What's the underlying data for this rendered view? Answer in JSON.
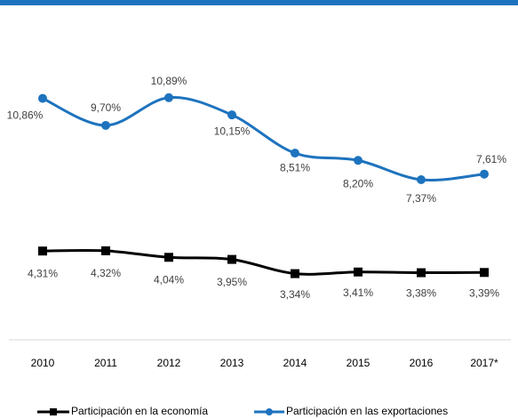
{
  "chart_data": {
    "type": "line",
    "categories": [
      "2010",
      "2011",
      "2012",
      "2013",
      "2014",
      "2015",
      "2016",
      "2017*"
    ],
    "series": [
      {
        "name": "Participación en la economía",
        "color": "#000000",
        "marker": "square",
        "values": [
          4.31,
          4.32,
          4.04,
          3.95,
          3.34,
          3.41,
          3.38,
          3.39
        ],
        "value_labels": [
          "4,31%",
          "4,32%",
          "4,04%",
          "3,95%",
          "3,34%",
          "3,41%",
          "3,38%",
          "3,39%"
        ]
      },
      {
        "name": "Participación en las exportaciones",
        "color": "#1e73be",
        "marker": "circle",
        "values": [
          10.86,
          9.7,
          10.89,
          10.15,
          8.51,
          8.2,
          7.37,
          7.61
        ],
        "value_labels": [
          "10,86%",
          "9,70%",
          "10,89%",
          "10,15%",
          "8,51%",
          "8,20%",
          "7,37%",
          "7,61%"
        ]
      }
    ],
    "ylim": [
      0.5,
      13
    ],
    "legend": "bottom"
  }
}
